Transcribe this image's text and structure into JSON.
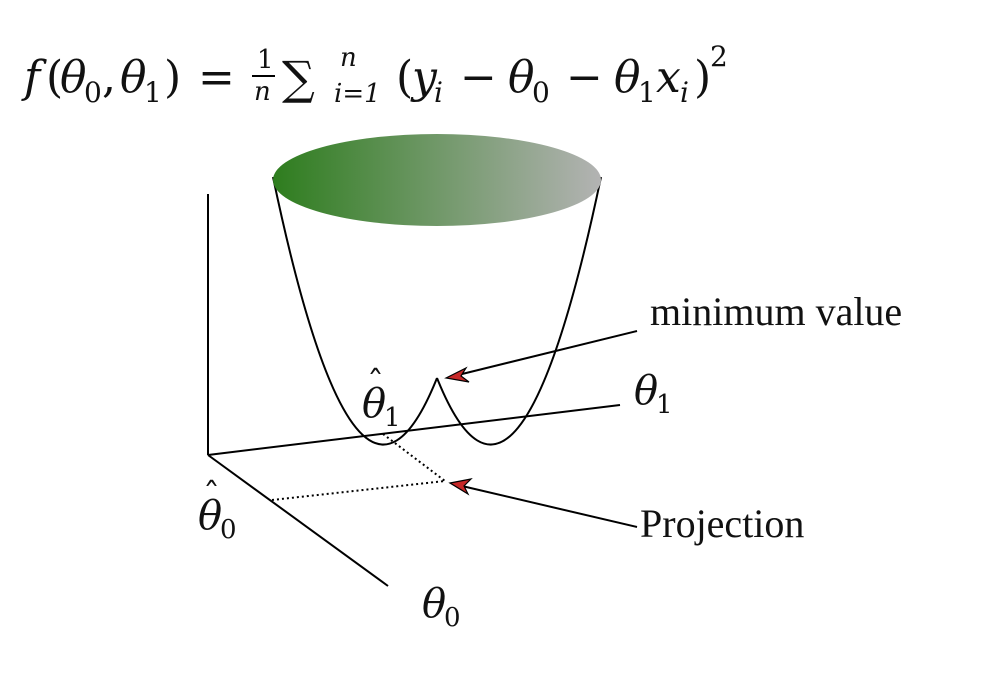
{
  "formula": {
    "lhs_f": "f",
    "open": "(",
    "theta": "θ",
    "sub0": "0",
    "comma": ",",
    "sub1": "1",
    "close": ")",
    "equals": "=",
    "frac_num": "1",
    "frac_den": "n",
    "sum": "∑",
    "sum_upper": "n",
    "sum_lower": "i=1",
    "y": "y",
    "sub_i": "i",
    "minus": "−",
    "x": "x",
    "square": "2"
  },
  "labels": {
    "minimum_value": "minimum value",
    "projection": "Projection",
    "theta1_axis_base": "θ",
    "theta1_axis_sub": "1",
    "theta0_axis_base": "θ",
    "theta0_axis_sub": "0",
    "theta1_hat_base": "θ",
    "theta1_hat_sub": "1",
    "theta0_hat_base": "θ",
    "theta0_hat_sub": "0",
    "hat": "ˆ"
  },
  "colors": {
    "gradient_start": "#2e7d1e",
    "gradient_end": "#b3b3b3",
    "arrow_head": "#c62828",
    "line": "#000000"
  }
}
